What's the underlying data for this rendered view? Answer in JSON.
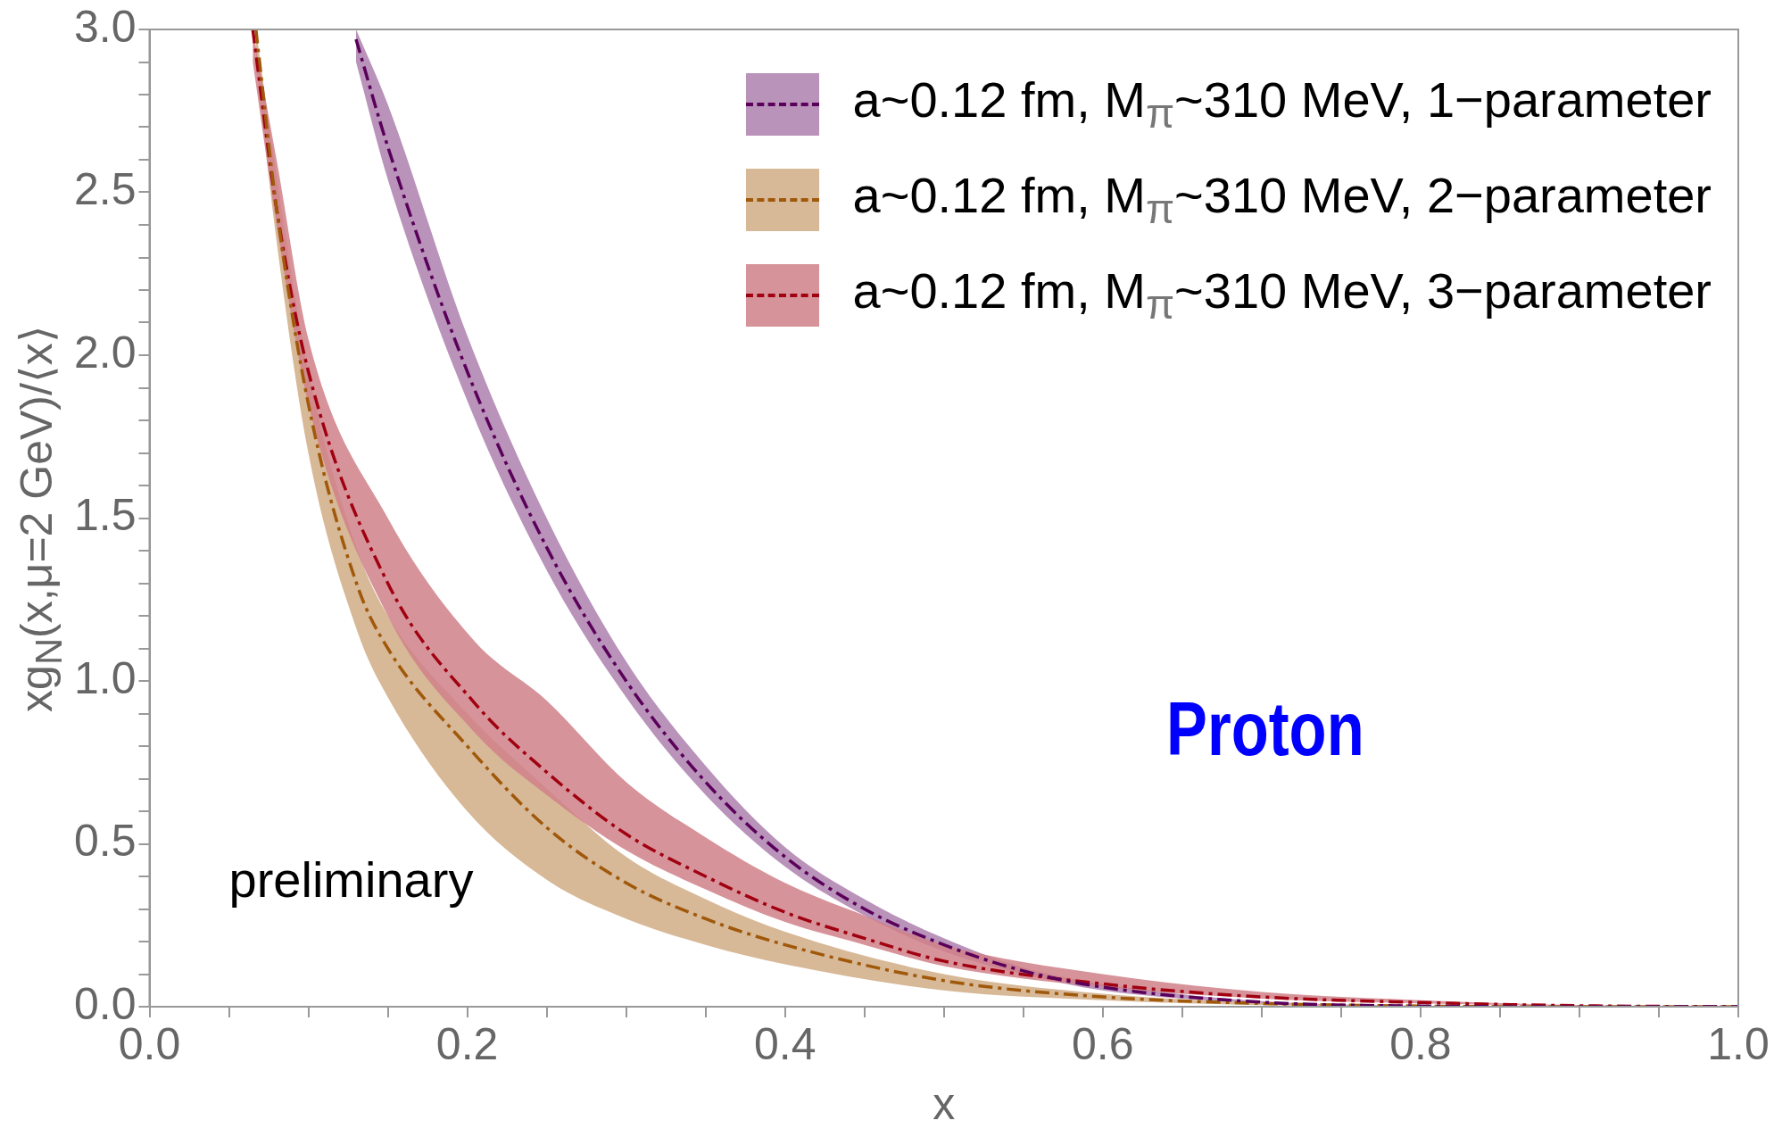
{
  "chart_data": {
    "type": "line",
    "xlabel": "x",
    "ylabel": "xg$_{N}$(x,μ=2 GeV)/⟨x⟩",
    "xlim": [
      0,
      1
    ],
    "ylim": [
      0,
      3
    ],
    "xticks": [
      {
        "value": 0,
        "label": "0.0"
      },
      {
        "value": 0.05,
        "label": null
      },
      {
        "value": 0.1,
        "label": null
      },
      {
        "value": 0.15,
        "label": null
      },
      {
        "value": 0.2,
        "label": "0.2"
      },
      {
        "value": 0.25,
        "label": null
      },
      {
        "value": 0.3,
        "label": null
      },
      {
        "value": 0.35,
        "label": null
      },
      {
        "value": 0.4,
        "label": "0.4"
      },
      {
        "value": 0.45,
        "label": null
      },
      {
        "value": 0.5,
        "label": null
      },
      {
        "value": 0.55,
        "label": null
      },
      {
        "value": 0.6,
        "label": "0.6"
      },
      {
        "value": 0.65,
        "label": null
      },
      {
        "value": 0.7,
        "label": null
      },
      {
        "value": 0.75,
        "label": null
      },
      {
        "value": 0.8,
        "label": "0.8"
      },
      {
        "value": 0.85,
        "label": null
      },
      {
        "value": 0.9,
        "label": null
      },
      {
        "value": 0.95,
        "label": null
      },
      {
        "value": 1,
        "label": "1.0"
      }
    ],
    "yticks": [
      {
        "value": 0,
        "label": "0.0"
      },
      {
        "value": 0.1,
        "label": null
      },
      {
        "value": 0.2,
        "label": null
      },
      {
        "value": 0.3,
        "label": null
      },
      {
        "value": 0.4,
        "label": null
      },
      {
        "value": 0.5,
        "label": "0.5"
      },
      {
        "value": 0.6,
        "label": null
      },
      {
        "value": 0.7,
        "label": null
      },
      {
        "value": 0.8,
        "label": null
      },
      {
        "value": 0.9,
        "label": null
      },
      {
        "value": 1,
        "label": "1.0"
      },
      {
        "value": 1.1,
        "label": null
      },
      {
        "value": 1.2,
        "label": null
      },
      {
        "value": 1.3,
        "label": null
      },
      {
        "value": 1.4,
        "label": null
      },
      {
        "value": 1.5,
        "label": "1.5"
      },
      {
        "value": 1.6,
        "label": null
      },
      {
        "value": 1.7,
        "label": null
      },
      {
        "value": 1.8,
        "label": null
      },
      {
        "value": 1.9,
        "label": null
      },
      {
        "value": 2,
        "label": "2.0"
      },
      {
        "value": 2.1,
        "label": null
      },
      {
        "value": 2.2,
        "label": null
      },
      {
        "value": 2.3,
        "label": null
      },
      {
        "value": 2.4,
        "label": null
      },
      {
        "value": 2.5,
        "label": "2.5"
      },
      {
        "value": 2.6,
        "label": null
      },
      {
        "value": 2.7,
        "label": null
      },
      {
        "value": 2.8,
        "label": null
      },
      {
        "value": 2.9,
        "label": null
      },
      {
        "value": 3,
        "label": "3.0"
      }
    ],
    "legend": "top right",
    "line_style": "dashed",
    "series": [
      {
        "name": "a~0.12 fm, M$_{π}$~310 MeV, 1−parameter",
        "color": "#5a005a",
        "x": [
          0.13,
          0.15,
          0.2,
          0.25,
          0.3,
          0.35,
          0.4,
          0.45,
          0.5,
          0.55,
          0.6,
          0.7,
          0.8,
          0.9,
          1.0
        ],
        "values": [
          2.97,
          2.64,
          1.95,
          1.41,
          1.0,
          0.69,
          0.46,
          0.3,
          0.19,
          0.11,
          0.06,
          0.014,
          0.002,
          0,
          0
        ],
        "lower": [
          2.9,
          2.54,
          1.86,
          1.34,
          0.95,
          0.65,
          0.43,
          0.28,
          0.17,
          0.1,
          0.05,
          0.01,
          0.001,
          0,
          0
        ],
        "upper": [
          3.0,
          2.77,
          2.06,
          1.5,
          1.06,
          0.74,
          0.49,
          0.33,
          0.21,
          0.12,
          0.07,
          0.017,
          0.003,
          0,
          0
        ]
      },
      {
        "name": "a~0.12 fm, M$_{π}$~310 MeV, 2−parameter",
        "color": "#a0580a",
        "x": [
          0.067,
          0.08,
          0.1,
          0.131,
          0.15,
          0.2,
          0.25,
          0.3,
          0.35,
          0.4,
          0.5,
          0.6,
          0.7,
          0.8,
          0.9,
          1.0
        ],
        "values": [
          3.0,
          2.45,
          1.85,
          1.29,
          1.1,
          0.8,
          0.55,
          0.38,
          0.27,
          0.19,
          0.08,
          0.03,
          0.01,
          0.002,
          0,
          0
        ],
        "lower": [
          2.9,
          2.35,
          1.7,
          1.15,
          0.95,
          0.6,
          0.39,
          0.27,
          0.19,
          0.13,
          0.05,
          0.02,
          0.005,
          0.001,
          0,
          0
        ],
        "upper": [
          3.0,
          2.55,
          1.95,
          1.4,
          1.2,
          0.9,
          0.67,
          0.46,
          0.33,
          0.23,
          0.1,
          0.04,
          0.012,
          0.003,
          0,
          0
        ]
      },
      {
        "name": "a~0.12 fm, M$_{π}$~310 MeV, 3−parameter",
        "color": "#a00010",
        "x": [
          0.065,
          0.08,
          0.1,
          0.15,
          0.205,
          0.25,
          0.3,
          0.35,
          0.4,
          0.45,
          0.5,
          0.6,
          0.7,
          0.8,
          0.9,
          1.0
        ],
        "values": [
          3.0,
          2.45,
          1.95,
          1.3,
          0.93,
          0.72,
          0.53,
          0.4,
          0.29,
          0.21,
          0.14,
          0.07,
          0.03,
          0.013,
          0.003,
          0
        ],
        "lower": [
          2.9,
          2.4,
          1.85,
          1.2,
          0.84,
          0.65,
          0.48,
          0.36,
          0.26,
          0.19,
          0.125,
          0.06,
          0.025,
          0.01,
          0.002,
          0
        ],
        "upper": [
          3.0,
          2.6,
          2.05,
          1.5,
          1.12,
          0.94,
          0.69,
          0.52,
          0.38,
          0.28,
          0.19,
          0.1,
          0.045,
          0.02,
          0.005,
          0
        ]
      }
    ],
    "annotations": [
      "preliminary",
      "Proton"
    ]
  }
}
